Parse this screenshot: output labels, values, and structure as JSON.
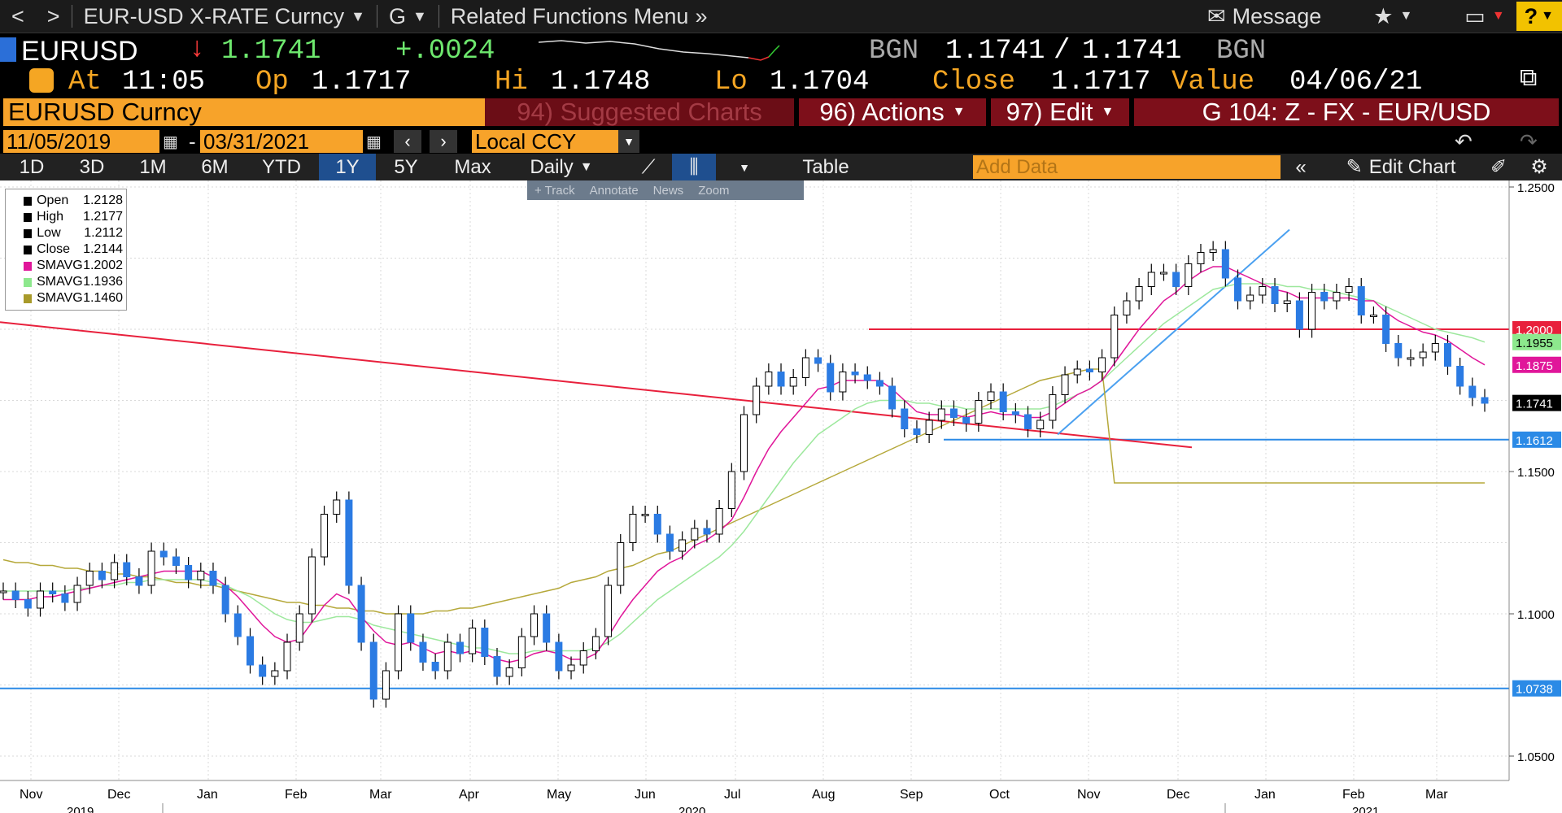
{
  "menubar": {
    "back": "<",
    "forward": ">",
    "security_title": "EUR-USD X-RATE Curncy",
    "function": "G",
    "related_menu": "Related Functions Menu",
    "message": "Message",
    "help": "?"
  },
  "quote": {
    "ticker": "EURUSD",
    "last": "1.1741",
    "change": "+.0024",
    "source": "BGN",
    "bid": "1.1741",
    "ask": "1.1741",
    "source2": "BGN",
    "at_label": "At",
    "time": "11:05",
    "op_label": "Op",
    "open": "1.1717",
    "hi_label": "Hi",
    "high": "1.1748",
    "lo_label": "Lo",
    "low": "1.1704",
    "close_label": "Close",
    "close": "1.1717",
    "value_label": "Value",
    "value_date": "04/06/21"
  },
  "secbar": {
    "security": "EURUSD Curncy",
    "suggested": "94) Suggested Charts",
    "actions": "96) Actions",
    "edit": "97) Edit",
    "chart_name": "G 104: Z - FX - EUR/USD"
  },
  "datebar": {
    "start": "11/05/2019",
    "dash": "-",
    "end": "03/31/2021",
    "currency": "Local CCY"
  },
  "toolbar": {
    "ranges": [
      "1D",
      "3D",
      "1M",
      "6M",
      "YTD",
      "1Y",
      "5Y",
      "Max"
    ],
    "active": "1Y",
    "frequency": "Daily",
    "table": "Table",
    "add_data": "Add Data",
    "edit_chart": "Edit Chart"
  },
  "tracktools": [
    "+ Track",
    "Annotate",
    "News",
    "Zoom"
  ],
  "legend": [
    {
      "name": "Open",
      "value": "1.2128",
      "color": "#000000"
    },
    {
      "name": "High",
      "value": "1.2177",
      "color": "#000000"
    },
    {
      "name": "Low",
      "value": "1.2112",
      "color": "#000000"
    },
    {
      "name": "Close",
      "value": "1.2144",
      "color": "#000000"
    },
    {
      "name": "SMAVG",
      "value": "1.2002",
      "color": "#e0169a"
    },
    {
      "name": "SMAVG",
      "value": "1.1936",
      "color": "#8de88d"
    },
    {
      "name": "SMAVG",
      "value": "1.1460",
      "color": "#a89a2a"
    }
  ],
  "chart_data": {
    "type": "line",
    "ylim": [
      1.05,
      1.25
    ],
    "y_ticks": [
      "1.2500",
      "1.1500",
      "1.1000",
      "1.0500"
    ],
    "months": [
      "Nov",
      "Dec",
      "Jan",
      "Feb",
      "Mar",
      "Apr",
      "May",
      "Jun",
      "Jul",
      "Aug",
      "Sep",
      "Oct",
      "Nov",
      "Dec",
      "Jan",
      "Feb",
      "Mar"
    ],
    "years": [
      "2019",
      "2020",
      "2021"
    ],
    "price_tags": [
      {
        "label": "1.2000",
        "value": 1.2,
        "color": "#e8203c"
      },
      {
        "label": "1.1955",
        "value": 1.1955,
        "color": "#8de88d"
      },
      {
        "label": "1.1875",
        "value": 1.1875,
        "color": "#e0169a"
      },
      {
        "label": "1.1741",
        "value": 1.1741,
        "color": "#000000"
      },
      {
        "label": "1.1612",
        "value": 1.1612,
        "color": "#2b8ae6"
      },
      {
        "label": "1.0738",
        "value": 1.0738,
        "color": "#2b8ae6"
      }
    ],
    "close": [
      1.108,
      1.105,
      1.102,
      1.108,
      1.107,
      1.104,
      1.11,
      1.115,
      1.112,
      1.118,
      1.113,
      1.11,
      1.122,
      1.12,
      1.117,
      1.112,
      1.115,
      1.11,
      1.1,
      1.092,
      1.082,
      1.078,
      1.08,
      1.09,
      1.1,
      1.12,
      1.135,
      1.14,
      1.11,
      1.09,
      1.07,
      1.08,
      1.1,
      1.09,
      1.083,
      1.08,
      1.09,
      1.086,
      1.095,
      1.085,
      1.078,
      1.081,
      1.092,
      1.1,
      1.09,
      1.08,
      1.082,
      1.087,
      1.092,
      1.11,
      1.125,
      1.135,
      1.135,
      1.128,
      1.122,
      1.126,
      1.13,
      1.128,
      1.137,
      1.15,
      1.17,
      1.18,
      1.185,
      1.18,
      1.183,
      1.19,
      1.188,
      1.178,
      1.185,
      1.184,
      1.182,
      1.18,
      1.172,
      1.165,
      1.163,
      1.168,
      1.172,
      1.169,
      1.167,
      1.175,
      1.178,
      1.171,
      1.17,
      1.165,
      1.168,
      1.177,
      1.184,
      1.186,
      1.185,
      1.19,
      1.205,
      1.21,
      1.215,
      1.22,
      1.22,
      1.215,
      1.223,
      1.227,
      1.228,
      1.218,
      1.21,
      1.212,
      1.215,
      1.209,
      1.21,
      1.2,
      1.213,
      1.21,
      1.213,
      1.215,
      1.205,
      1.205,
      1.195,
      1.19,
      1.19,
      1.192,
      1.195,
      1.187,
      1.18,
      1.176,
      1.174
    ],
    "sma20": [
      1.105,
      1.105,
      1.105,
      1.106,
      1.106,
      1.107,
      1.108,
      1.109,
      1.11,
      1.111,
      1.112,
      1.113,
      1.114,
      1.115,
      1.115,
      1.115,
      1.115,
      1.113,
      1.11,
      1.106,
      1.101,
      1.096,
      1.092,
      1.09,
      1.091,
      1.097,
      1.103,
      1.107,
      1.105,
      1.099,
      1.094,
      1.09,
      1.089,
      1.09,
      1.088,
      1.086,
      1.087,
      1.086,
      1.087,
      1.086,
      1.084,
      1.083,
      1.084,
      1.086,
      1.087,
      1.086,
      1.084,
      1.084,
      1.086,
      1.092,
      1.099,
      1.105,
      1.11,
      1.115,
      1.118,
      1.12,
      1.124,
      1.126,
      1.129,
      1.133,
      1.141,
      1.15,
      1.158,
      1.164,
      1.169,
      1.174,
      1.179,
      1.18,
      1.182,
      1.182,
      1.182,
      1.182,
      1.179,
      1.175,
      1.171,
      1.17,
      1.17,
      1.17,
      1.169,
      1.17,
      1.171,
      1.17,
      1.17,
      1.169,
      1.169,
      1.171,
      1.174,
      1.177,
      1.179,
      1.182,
      1.188,
      1.194,
      1.2,
      1.205,
      1.21,
      1.213,
      1.217,
      1.22,
      1.222,
      1.222,
      1.22,
      1.218,
      1.216,
      1.214,
      1.213,
      1.211,
      1.211,
      1.211,
      1.211,
      1.211,
      1.21,
      1.21,
      1.206,
      1.203,
      1.201,
      1.199,
      1.198,
      1.196,
      1.193,
      1.19,
      1.1875
    ],
    "sma50": [
      1.108,
      1.108,
      1.108,
      1.108,
      1.108,
      1.108,
      1.109,
      1.109,
      1.11,
      1.11,
      1.111,
      1.111,
      1.112,
      1.112,
      1.112,
      1.112,
      1.112,
      1.111,
      1.11,
      1.108,
      1.106,
      1.103,
      1.1,
      1.098,
      1.097,
      1.097,
      1.098,
      1.099,
      1.099,
      1.098,
      1.096,
      1.095,
      1.094,
      1.093,
      1.092,
      1.091,
      1.09,
      1.089,
      1.088,
      1.088,
      1.087,
      1.086,
      1.086,
      1.087,
      1.087,
      1.087,
      1.087,
      1.087,
      1.088,
      1.09,
      1.093,
      1.097,
      1.101,
      1.105,
      1.108,
      1.111,
      1.114,
      1.117,
      1.12,
      1.124,
      1.129,
      1.135,
      1.141,
      1.147,
      1.153,
      1.158,
      1.163,
      1.166,
      1.169,
      1.172,
      1.174,
      1.175,
      1.175,
      1.175,
      1.174,
      1.174,
      1.173,
      1.173,
      1.172,
      1.172,
      1.172,
      1.172,
      1.172,
      1.172,
      1.172,
      1.173,
      1.175,
      1.177,
      1.179,
      1.182,
      1.186,
      1.19,
      1.194,
      1.198,
      1.202,
      1.205,
      1.208,
      1.211,
      1.214,
      1.215,
      1.216,
      1.216,
      1.216,
      1.216,
      1.215,
      1.215,
      1.214,
      1.214,
      1.213,
      1.212,
      1.211,
      1.21,
      1.208,
      1.206,
      1.204,
      1.202,
      1.2,
      1.199,
      1.198,
      1.197,
      1.1955
    ],
    "sma200": [
      1.119,
      1.118,
      1.118,
      1.117,
      1.117,
      1.116,
      1.116,
      1.115,
      1.115,
      1.114,
      1.114,
      1.113,
      1.113,
      1.112,
      1.111,
      1.111,
      1.11,
      1.11,
      1.109,
      1.108,
      1.107,
      1.106,
      1.105,
      1.104,
      1.104,
      1.103,
      1.103,
      1.102,
      1.102,
      1.101,
      1.101,
      1.1,
      1.1,
      1.1,
      1.1,
      1.101,
      1.101,
      1.102,
      1.102,
      1.103,
      1.104,
      1.105,
      1.106,
      1.107,
      1.108,
      1.109,
      1.111,
      1.112,
      1.113,
      1.115,
      1.116,
      1.117,
      1.119,
      1.121,
      1.122,
      1.124,
      1.126,
      1.128,
      1.13,
      1.132,
      1.134,
      1.136,
      1.138,
      1.14,
      1.142,
      1.144,
      1.146,
      1.148,
      1.15,
      1.152,
      1.154,
      1.156,
      1.158,
      1.16,
      1.162,
      1.164,
      1.166,
      1.168,
      1.17,
      1.172,
      1.174,
      1.176,
      1.178,
      1.18,
      1.182,
      1.183,
      1.184,
      1.185,
      1.186,
      1.186,
      1.146,
      1.146,
      1.146,
      1.146,
      1.146,
      1.146,
      1.146,
      1.146,
      1.146,
      1.146,
      1.146,
      1.146,
      1.146,
      1.146,
      1.146,
      1.146,
      1.146,
      1.146,
      1.146,
      1.146,
      1.146,
      1.146,
      1.146,
      1.146,
      1.146,
      1.146,
      1.146,
      1.146,
      1.146,
      1.146,
      1.146
    ]
  }
}
